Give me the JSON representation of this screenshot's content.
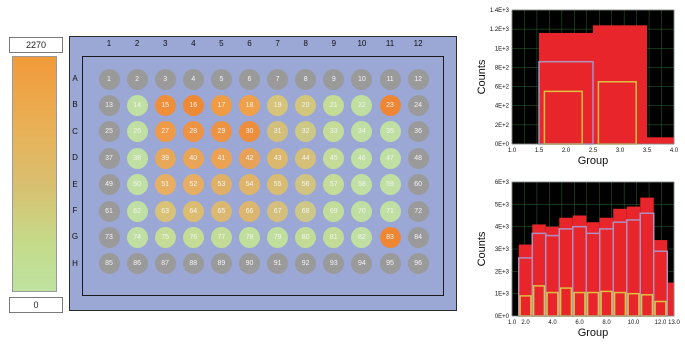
{
  "color_scale": {
    "max_value": "2270",
    "min_value": "0",
    "colors": [
      "#f29a3a",
      "#bfe2a0"
    ]
  },
  "plate": {
    "column_labels": [
      "1",
      "2",
      "3",
      "4",
      "5",
      "6",
      "7",
      "8",
      "9",
      "10",
      "11",
      "12"
    ],
    "row_labels": [
      "A",
      "B",
      "C",
      "D",
      "E",
      "F",
      "G",
      "H"
    ],
    "well_labels": [
      "1",
      "2",
      "3",
      "4",
      "5",
      "6",
      "7",
      "8",
      "9",
      "10",
      "11",
      "12",
      "13",
      "14",
      "15",
      "16",
      "17",
      "18",
      "19",
      "20",
      "21",
      "22",
      "23",
      "24",
      "25",
      "26",
      "27",
      "28",
      "29",
      "30",
      "31",
      "32",
      "33",
      "34",
      "35",
      "36",
      "37",
      "38",
      "39",
      "40",
      "41",
      "42",
      "43",
      "44",
      "45",
      "46",
      "47",
      "48",
      "49",
      "50",
      "51",
      "52",
      "53",
      "54",
      "55",
      "56",
      "57",
      "58",
      "59",
      "60",
      "61",
      "62",
      "63",
      "64",
      "65",
      "66",
      "67",
      "68",
      "69",
      "70",
      "71",
      "72",
      "73",
      "74",
      "75",
      "76",
      "77",
      "78",
      "79",
      "80",
      "81",
      "82",
      "83",
      "84",
      "85",
      "86",
      "87",
      "88",
      "89",
      "90",
      "91",
      "92",
      "93",
      "94",
      "95",
      "96"
    ],
    "well_colors": [
      "#9a9a9a",
      "#9a9a9a",
      "#9a9a9a",
      "#9a9a9a",
      "#9a9a9a",
      "#9a9a9a",
      "#9a9a9a",
      "#9a9a9a",
      "#9a9a9a",
      "#9a9a9a",
      "#9a9a9a",
      "#9a9a9a",
      "#9a9a9a",
      "#bfe0a2",
      "#ef8f3a",
      "#ee8a36",
      "#f09c44",
      "#f1a04a",
      "#d6c47a",
      "#d2c57c",
      "#c4dc96",
      "#c0dea0",
      "#ee8634",
      "#9a9a9a",
      "#9a9a9a",
      "#bfe0a2",
      "#ee9a46",
      "#ee9244",
      "#ec9444",
      "#ec8e3c",
      "#d2c07a",
      "#ccc886",
      "#c4dc98",
      "#bfe0a2",
      "#bfe0a2",
      "#9a9a9a",
      "#9a9a9a",
      "#bfe0a2",
      "#e8a85a",
      "#e9a456",
      "#eba253",
      "#e8a258",
      "#dbb86c",
      "#d4c078",
      "#c4dc98",
      "#bfe0a2",
      "#bfe0a2",
      "#9a9a9a",
      "#9a9a9a",
      "#bfe0a2",
      "#e8ae62",
      "#e6ae62",
      "#e0b066",
      "#ddb46a",
      "#d8bc72",
      "#d0c480",
      "#c4dc98",
      "#bfe0a2",
      "#bfe0a2",
      "#9a9a9a",
      "#9a9a9a",
      "#bfe0a2",
      "#d8c278",
      "#dcbc70",
      "#dab872",
      "#dcb66e",
      "#d4c07c",
      "#cdc888",
      "#c2dc9a",
      "#bfe0a2",
      "#bfe0a2",
      "#9a9a9a",
      "#9a9a9a",
      "#bfe0a2",
      "#c4dc96",
      "#c4dc96",
      "#c2dc98",
      "#c0de9c",
      "#c0de9c",
      "#c2dc98",
      "#c2dc98",
      "#bfe0a2",
      "#ee8634",
      "#9a9a9a",
      "#9a9a9a",
      "#9a9a9a",
      "#9a9a9a",
      "#9a9a9a",
      "#9a9a9a",
      "#9a9a9a",
      "#9a9a9a",
      "#9a9a9a",
      "#9a9a9a",
      "#9a9a9a",
      "#9a9a9a",
      "#9a9a9a"
    ],
    "frame_color": "#9ba7d4"
  },
  "chart_data": [
    {
      "type": "bar",
      "xlabel": "Group",
      "ylabel": "Counts",
      "xlim": [
        1.0,
        4.0
      ],
      "ylim": [
        0,
        1400
      ],
      "x_ticks": [
        "1.0",
        "1.5",
        "2.0",
        "2.5",
        "3.0",
        "3.5",
        "4.0"
      ],
      "y_ticks": [
        "0E+0",
        "2E+2",
        "4E+2",
        "6E+2",
        "8E+2",
        "1E+3",
        "1.2E+3",
        "1.4E+3"
      ],
      "bins": [
        {
          "x0": 1.5,
          "x1": 2.5,
          "value": 1160
        },
        {
          "x0": 2.5,
          "x1": 3.5,
          "value": 1240
        },
        {
          "x0": 3.5,
          "x1": 4.0,
          "value": 70
        }
      ],
      "outline_series": [
        {
          "color": "#b090c0",
          "bins": [
            {
              "x0": 1.5,
              "x1": 2.5,
              "value": 860
            }
          ]
        },
        {
          "color": "#e0c040",
          "bins": [
            {
              "x0": 1.6,
              "x1": 2.3,
              "value": 550
            },
            {
              "x0": 2.6,
              "x1": 3.3,
              "value": 650
            }
          ]
        }
      ],
      "bar_color": "#e8252a",
      "grid": true
    },
    {
      "type": "bar",
      "xlabel": "Group",
      "ylabel": "Counts",
      "xlim": [
        1.0,
        13.0
      ],
      "ylim": [
        0,
        6000
      ],
      "x_ticks": [
        "1.0",
        "2.0",
        "4.0",
        "6.0",
        "8.0",
        "10.0",
        "12.0",
        "13.0"
      ],
      "y_ticks": [
        "0E+0",
        "1E+3",
        "2E+3",
        "3E+3",
        "4E+3",
        "5E+3",
        "6E+3"
      ],
      "bins": [
        {
          "x0": 1.5,
          "x1": 2.5,
          "value": 3200
        },
        {
          "x0": 2.5,
          "x1": 3.5,
          "value": 4100
        },
        {
          "x0": 3.5,
          "x1": 4.5,
          "value": 4000
        },
        {
          "x0": 4.5,
          "x1": 5.5,
          "value": 4400
        },
        {
          "x0": 5.5,
          "x1": 6.5,
          "value": 4500
        },
        {
          "x0": 6.5,
          "x1": 7.5,
          "value": 4200
        },
        {
          "x0": 7.5,
          "x1": 8.5,
          "value": 4400
        },
        {
          "x0": 8.5,
          "x1": 9.5,
          "value": 4800
        },
        {
          "x0": 9.5,
          "x1": 10.5,
          "value": 4900
        },
        {
          "x0": 10.5,
          "x1": 11.5,
          "value": 5300
        },
        {
          "x0": 11.5,
          "x1": 12.5,
          "value": 3400
        },
        {
          "x0": 12.5,
          "x1": 13.0,
          "value": 1500
        }
      ],
      "outline_series": [
        {
          "color": "#b090c0",
          "bins": [
            {
              "x0": 1.5,
              "x1": 2.5,
              "value": 2600
            },
            {
              "x0": 2.5,
              "x1": 3.5,
              "value": 3700
            },
            {
              "x0": 3.5,
              "x1": 4.5,
              "value": 3600
            },
            {
              "x0": 4.5,
              "x1": 5.5,
              "value": 3900
            },
            {
              "x0": 5.5,
              "x1": 6.5,
              "value": 4000
            },
            {
              "x0": 6.5,
              "x1": 7.5,
              "value": 3700
            },
            {
              "x0": 7.5,
              "x1": 8.5,
              "value": 3900
            },
            {
              "x0": 8.5,
              "x1": 9.5,
              "value": 4200
            },
            {
              "x0": 9.5,
              "x1": 10.5,
              "value": 4300
            },
            {
              "x0": 10.5,
              "x1": 11.5,
              "value": 4600
            },
            {
              "x0": 11.5,
              "x1": 12.5,
              "value": 2900
            }
          ]
        },
        {
          "color": "#e0c040",
          "bins": [
            {
              "x0": 1.6,
              "x1": 2.4,
              "value": 900
            },
            {
              "x0": 2.6,
              "x1": 3.4,
              "value": 1350
            },
            {
              "x0": 3.6,
              "x1": 4.4,
              "value": 1050
            },
            {
              "x0": 4.6,
              "x1": 5.4,
              "value": 1250
            },
            {
              "x0": 5.6,
              "x1": 6.4,
              "value": 1050
            },
            {
              "x0": 6.6,
              "x1": 7.4,
              "value": 1050
            },
            {
              "x0": 7.6,
              "x1": 8.4,
              "value": 1100
            },
            {
              "x0": 8.6,
              "x1": 9.4,
              "value": 1050
            },
            {
              "x0": 9.6,
              "x1": 10.4,
              "value": 1000
            },
            {
              "x0": 10.6,
              "x1": 11.4,
              "value": 950
            },
            {
              "x0": 11.6,
              "x1": 12.4,
              "value": 650
            }
          ]
        }
      ],
      "bar_color": "#e8252a",
      "grid": true
    }
  ]
}
